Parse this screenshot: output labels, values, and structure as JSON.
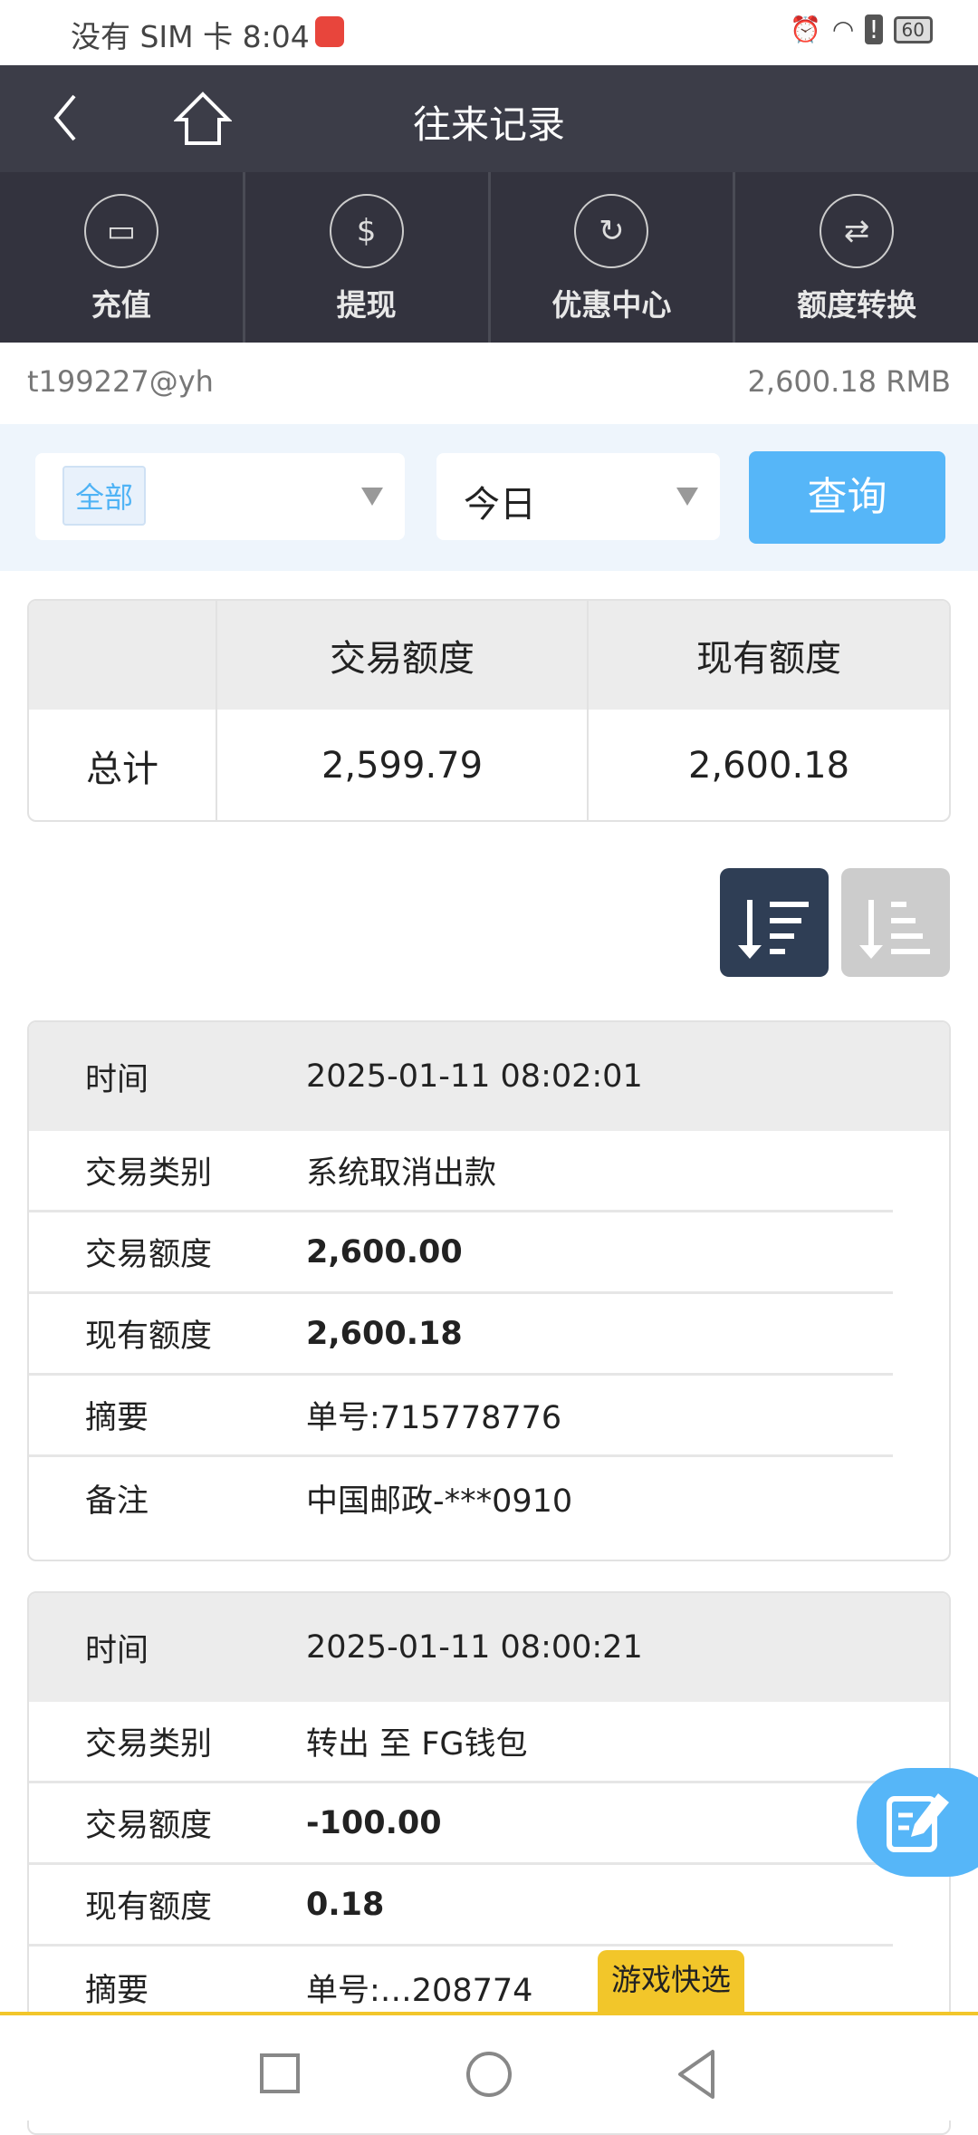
{
  "status_bar": {
    "carrier_time": "没有 SIM 卡 8:04",
    "battery": "60",
    "icons": [
      "alarm-icon",
      "wifi-icon",
      "alert-icon",
      "battery-icon"
    ]
  },
  "header": {
    "title": "往来记录",
    "back_icon": "chevron-left-icon",
    "home_icon": "home-icon"
  },
  "quick_actions": [
    {
      "label": "充值",
      "icon": "card-hand-icon"
    },
    {
      "label": "提现",
      "icon": "coin-hand-icon"
    },
    {
      "label": "优惠中心",
      "icon": "coin-refresh-icon"
    },
    {
      "label": "额度转换",
      "icon": "exchange-icon"
    }
  ],
  "user": {
    "account": "t199227@yh",
    "balance": "2,600.18 RMB"
  },
  "filter": {
    "type_value": "全部",
    "period_value": "今日",
    "query_label": "查询"
  },
  "summary": {
    "headers": [
      "",
      "交易额度",
      "现有额度"
    ],
    "row": [
      "总计",
      "2,599.79",
      "2,600.18"
    ]
  },
  "sort": {
    "desc_active": true
  },
  "records": [
    {
      "time_label": "时间",
      "time": "2025-01-11 08:02:01",
      "rows": [
        {
          "label": "交易类别",
          "value": "系统取消出款",
          "bold": false
        },
        {
          "label": "交易额度",
          "value": "2,600.00",
          "bold": true
        },
        {
          "label": "现有额度",
          "value": "2,600.18",
          "bold": true
        },
        {
          "label": "摘要",
          "value": "单号:715778776",
          "bold": false
        },
        {
          "label": "备注",
          "value": "中国邮政-***0910",
          "bold": false
        }
      ]
    },
    {
      "time_label": "时间",
      "time": "2025-01-11 08:00:21",
      "rows": [
        {
          "label": "交易类别",
          "value": "转出 至 FG钱包",
          "bold": false
        },
        {
          "label": "交易额度",
          "value": "-100.00",
          "bold": true
        },
        {
          "label": "现有额度",
          "value": "0.18",
          "bold": true
        },
        {
          "label": "摘要",
          "value": "单号:…208774",
          "bold": false
        }
      ]
    }
  ],
  "floating": {
    "game_quick_pick": "游戏快选",
    "fab_icon": "edit-note-icon"
  },
  "colors": {
    "header": "#3c3d48",
    "accent": "#56b6f8",
    "sort_active": "#2f3e55",
    "game_badge": "#f2c62a"
  }
}
